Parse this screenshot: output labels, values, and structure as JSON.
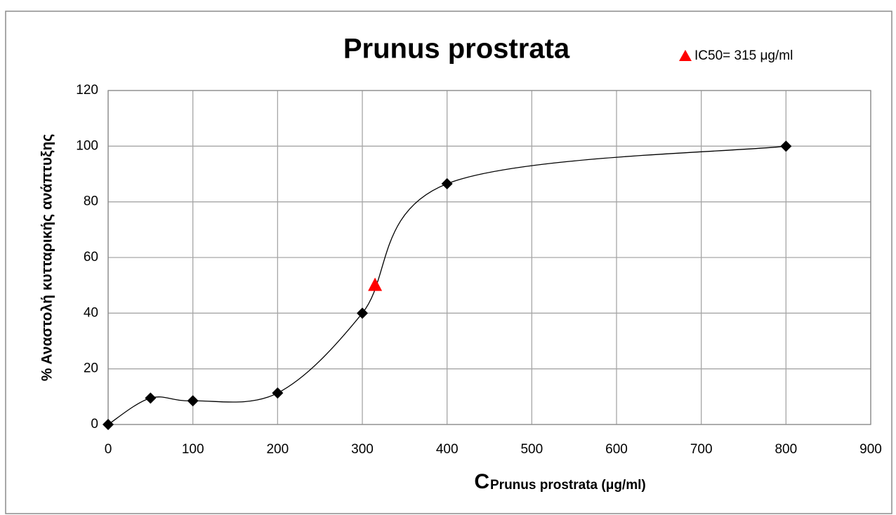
{
  "chart_data": {
    "type": "scatter",
    "title": "Prunus prostrata",
    "x_label": "C",
    "x_label_subscript": "Prunus prostrata (μg/ml)",
    "y_label": "% Αναστολή κυτταρικής ανάπτυξης",
    "series": [
      {
        "color": "#000000",
        "marker": "diamond",
        "line": "smooth",
        "x": [
          0,
          50,
          100,
          200,
          300,
          400,
          800
        ],
        "values": [
          0,
          9.5,
          8.5,
          11.3,
          40,
          86.5,
          100
        ]
      },
      {
        "name": "IC50= 315 μg/ml",
        "color": "#ff0000",
        "marker": "triangle",
        "x": [
          315
        ],
        "values": [
          50
        ]
      }
    ],
    "xlim": [
      0,
      900
    ],
    "xticks": [
      0,
      100,
      200,
      300,
      400,
      500,
      600,
      700,
      800,
      900
    ],
    "ylim": [
      0,
      120
    ],
    "yticks": [
      0,
      20,
      40,
      60,
      80,
      100,
      120
    ],
    "grid": true,
    "legend": "top-right"
  }
}
